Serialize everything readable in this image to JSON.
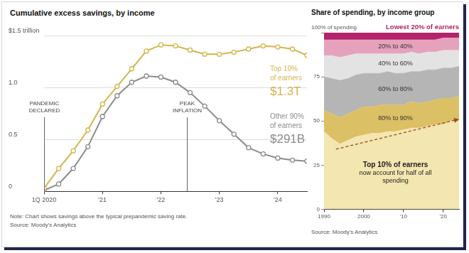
{
  "chart_data": [
    {
      "type": "line",
      "title": "Cumulative excess savings, by income",
      "note": "Note: Chart shows savings above the typical prepandemic saving rate.",
      "source": "Source: Moody's Analytics",
      "x": [
        2020,
        2020.25,
        2020.5,
        2020.75,
        2021,
        2021.25,
        2021.5,
        2021.75,
        2022,
        2022.25,
        2022.5,
        2022.75,
        2023,
        2023.25,
        2023.5,
        2023.75,
        2024,
        2024.25,
        2024.5
      ],
      "xlim": [
        2020,
        2024.5
      ],
      "xticks": [
        {
          "value": 2020,
          "label": "1Q 2020"
        },
        {
          "value": 2021,
          "label": "'21"
        },
        {
          "value": 2022,
          "label": "'22"
        },
        {
          "value": 2023,
          "label": "'23"
        },
        {
          "value": 2024,
          "label": "'24"
        }
      ],
      "ylim": [
        0,
        1.5
      ],
      "yticks": [
        0,
        0.5,
        {
          "value": 1,
          "label": "1.0"
        },
        {
          "value": 1.5,
          "label": "$1.5 trillion"
        }
      ],
      "grid": true,
      "marker": "circle",
      "series": [
        {
          "name": "Top 10% of earners",
          "color": "#d4b54a",
          "values": [
            0.03,
            0.22,
            0.39,
            0.59,
            0.84,
            1.01,
            1.18,
            1.35,
            1.41,
            1.4,
            1.36,
            1.32,
            1.32,
            1.34,
            1.37,
            1.4,
            1.39,
            1.37,
            1.31
          ],
          "value_labels": [
            null,
            null,
            null,
            null,
            null,
            null,
            null,
            null,
            null,
            null,
            null,
            null,
            null,
            null,
            null,
            null,
            null,
            null,
            "$1.3T"
          ]
        },
        {
          "name": "Other 90% of earners",
          "color": "#8c8c8c",
          "values": [
            0.01,
            0.07,
            0.22,
            0.43,
            0.72,
            0.92,
            1.05,
            1.11,
            1.1,
            1.05,
            0.95,
            0.82,
            0.68,
            0.55,
            0.42,
            0.36,
            0.32,
            0.3,
            0.291
          ],
          "value_labels": [
            null,
            null,
            null,
            null,
            null,
            null,
            null,
            null,
            null,
            null,
            null,
            null,
            null,
            null,
            null,
            null,
            null,
            null,
            "$291B"
          ]
        }
      ],
      "annotations": [
        {
          "text": "PANDEMIC DECLARED",
          "x": 2020
        },
        {
          "text": "PEAK INFLATION",
          "x": 2022.45
        }
      ]
    },
    {
      "type": "area",
      "title": "Share of spending, by income group",
      "source": "Source: Moody's Analytics",
      "stacked": true,
      "x": [
        1990,
        1992,
        1994,
        1996,
        1998,
        2000,
        2002,
        2004,
        2006,
        2008,
        2010,
        2012,
        2014,
        2016,
        2018,
        2020,
        2022,
        2024
      ],
      "xlim": [
        1990,
        2024
      ],
      "xticks": [
        1990,
        2000,
        {
          "value": 2010,
          "label": "'10"
        },
        {
          "value": 2020,
          "label": "'20"
        }
      ],
      "ylim": [
        0,
        100
      ],
      "yticks": [
        0,
        25,
        50,
        75,
        {
          "value": 100,
          "label": "100% of spending"
        }
      ],
      "grid": false,
      "series": [
        {
          "name": "Top 10% of earners",
          "color": "#f3e6b0",
          "values": [
            44,
            40,
            37,
            39,
            41,
            42,
            43,
            43,
            44,
            44,
            45,
            46,
            46,
            47,
            48,
            48,
            50,
            50
          ]
        },
        {
          "name": "80% to 90%",
          "color": "#dcc065",
          "values": [
            12,
            14,
            15,
            15,
            15,
            16,
            15,
            16,
            15,
            15,
            14,
            15,
            14,
            14,
            14,
            15,
            13,
            14
          ]
        },
        {
          "name": "60% to 80%",
          "color": "#b5b5b5",
          "values": [
            19,
            20,
            21,
            20,
            20,
            19,
            19,
            18,
            19,
            18,
            18,
            17,
            18,
            18,
            17,
            17,
            17,
            17
          ]
        },
        {
          "name": "40% to 60%",
          "color": "#e3e3e3",
          "values": [
            12,
            13,
            13,
            13,
            12,
            11,
            11,
            11,
            10,
            11,
            11,
            11,
            10,
            10,
            10,
            10,
            10,
            9
          ]
        },
        {
          "name": "20% to 40%",
          "color": "#e6a2bd",
          "values": [
            9,
            9,
            10,
            9,
            8,
            8,
            8,
            8,
            8,
            8,
            8,
            7,
            8,
            7,
            7,
            7,
            7,
            7
          ]
        },
        {
          "name": "Lowest 20% of earners",
          "color": "#b3236b",
          "values": [
            4,
            4,
            4,
            4,
            4,
            4,
            4,
            4,
            4,
            4,
            4,
            4,
            4,
            4,
            4,
            3,
            3,
            3
          ]
        }
      ],
      "annotation": "now account for half of all spending",
      "arrow": {
        "x": [
          1993,
          2024
        ],
        "values": [
          34,
          51
        ],
        "line_style": "dashed",
        "color": "#9a4a1c"
      }
    }
  ]
}
